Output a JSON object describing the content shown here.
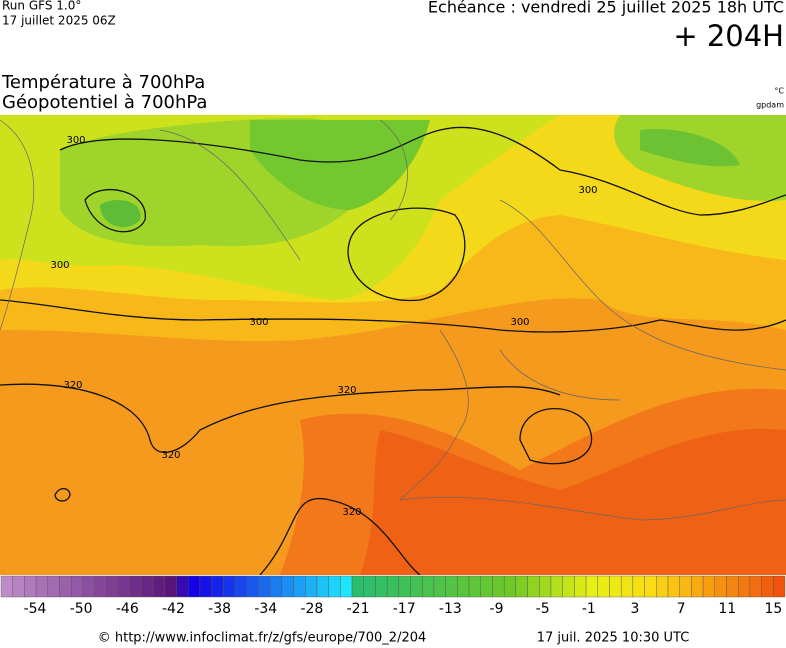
{
  "header": {
    "run": "Run GFS 1.0°",
    "run_date": "17 juillet 2025 06Z",
    "forecast": "Echéance : vendredi 25 juillet 2025 18h UTC",
    "lead": "+ 204H",
    "title1": "Température à 700hPa",
    "title2": "Géopotentiel à 700hPa",
    "unit1": "°C",
    "unit2": "gpdam"
  },
  "map": {
    "contour_labels": [
      "300",
      "300",
      "300",
      "300",
      "300",
      "320",
      "320",
      "320",
      "320"
    ]
  },
  "colorbar": {
    "labels": [
      -54,
      -50,
      -46,
      -42,
      -38,
      -34,
      -28,
      -21,
      -17,
      -13,
      -9,
      -5,
      -1,
      3,
      7,
      11,
      15
    ]
  },
  "footer": {
    "source": "© http://www.infoclimat.fr/z/gfs/europe/700_2/204",
    "issued": "17 juil. 2025 10:30 UTC"
  }
}
